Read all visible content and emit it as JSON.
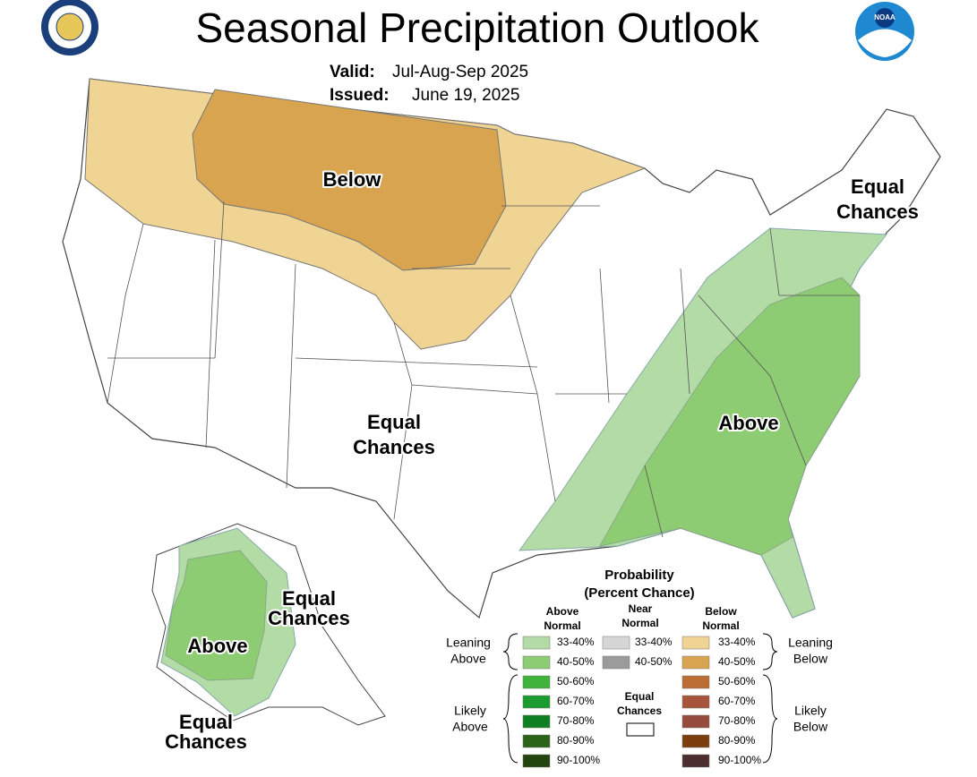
{
  "header": {
    "title": "Seasonal Precipitation Outlook",
    "valid_label": "Valid:",
    "valid": "Jul-Aug-Sep 2025",
    "issued_label": "Issued:",
    "issued": "June 19, 2025"
  },
  "logos": {
    "noaa": "NOAA"
  },
  "map_labels": [
    {
      "lines": [
        "Below"
      ]
    },
    {
      "lines": [
        "Equal",
        "Chances"
      ]
    },
    {
      "lines": [
        "Above"
      ]
    },
    {
      "lines": [
        "Equal",
        "Chances"
      ]
    },
    {
      "lines": [
        "Above"
      ]
    },
    {
      "lines": [
        "Equal",
        "Chances"
      ]
    },
    {
      "lines": [
        "Equal",
        "Chances"
      ]
    }
  ],
  "legend": {
    "title": "Probability",
    "subtitle": "(Percent Chance)",
    "columns": [
      {
        "header": [
          "Above",
          "Normal"
        ],
        "items": [
          {
            "label": "33-40%",
            "color": "#b3dba6"
          },
          {
            "label": "40-50%",
            "color": "#8dcc73"
          },
          {
            "label": "50-60%",
            "color": "#3fb33a"
          },
          {
            "label": "60-70%",
            "color": "#1b9c30"
          },
          {
            "label": "70-80%",
            "color": "#0f7f23"
          },
          {
            "label": "80-90%",
            "color": "#2b6318"
          },
          {
            "label": "90-100%",
            "color": "#22450f"
          }
        ]
      },
      {
        "header": [
          "Near",
          "Normal"
        ],
        "items": [
          {
            "label": "33-40%",
            "color": "#d6d6d6"
          },
          {
            "label": "40-50%",
            "color": "#9b9b9b"
          }
        ]
      },
      {
        "header": [
          "Below",
          "Normal"
        ],
        "items": [
          {
            "label": "33-40%",
            "color": "#f0d493"
          },
          {
            "label": "40-50%",
            "color": "#d8a44f"
          },
          {
            "label": "50-60%",
            "color": "#bb6d33"
          },
          {
            "label": "60-70%",
            "color": "#a6553a"
          },
          {
            "label": "70-80%",
            "color": "#954c3c"
          },
          {
            "label": "80-90%",
            "color": "#7a3f0c"
          },
          {
            "label": "90-100%",
            "color": "#4b2d2e"
          }
        ]
      }
    ],
    "groups": [
      {
        "lines": [
          "Leaning",
          "Above"
        ]
      },
      {
        "lines": [
          "Likely",
          "Above"
        ]
      },
      {
        "lines": [
          "Leaning",
          "Below"
        ]
      },
      {
        "lines": [
          "Likely",
          "Below"
        ]
      },
      {
        "lines": [
          "Equal",
          "Chances"
        ]
      }
    ]
  }
}
